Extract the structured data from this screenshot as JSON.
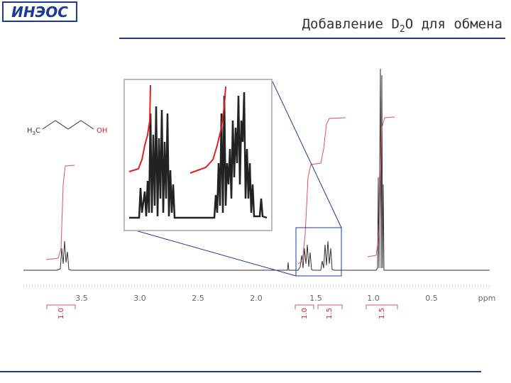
{
  "header": {
    "logo": "ИНЭОС",
    "title": {
      "main": "Добавление D",
      "subscript": "2",
      "rest": "O для обмена"
    }
  },
  "molecule": {
    "left": "H",
    "left_sub": "3",
    "left_rest": "C",
    "right": "OH"
  },
  "spectrum": {
    "ticks": [
      "3.5",
      "3.0",
      "2.5",
      "2.0",
      "1.5",
      "1.0",
      "0.5"
    ],
    "unit": "ppm",
    "integrals": [
      "1.0",
      "1.0",
      "1.5",
      "1.5"
    ]
  }
}
